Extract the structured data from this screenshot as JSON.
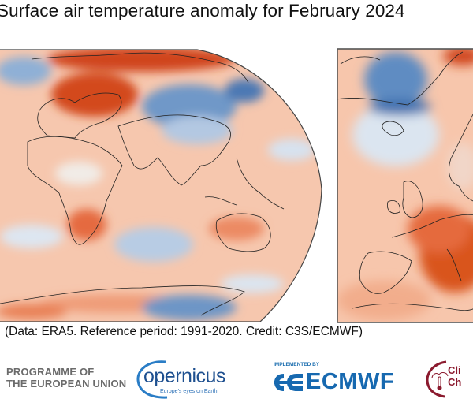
{
  "title": "Surface air temperature anomaly for February 2024",
  "credit": "(Data: ERA5.  Reference period: 1991-2020.  Credit: C3S/ECMWF)",
  "maps": {
    "world": {
      "region": "global",
      "colormap": "blue-white-red anomaly"
    },
    "europe": {
      "region": "europe",
      "colormap": "blue-white-red anomaly"
    }
  },
  "colors": {
    "warm_strong": "#c0300b",
    "warm": "#e8714a",
    "warm_light": "#f7c3a8",
    "neutral": "#f7f2ee",
    "cool_light": "#cddcee",
    "cool": "#6f98c8",
    "cool_strong": "#2c5a9c",
    "coast": "#222222"
  },
  "logos": {
    "eu_programme": {
      "line1": "PROGRAMME OF",
      "line2": "THE EUROPEAN UNION"
    },
    "copernicus": {
      "word": "opernicus",
      "tagline": "Europe's eyes on Earth"
    },
    "ecmwf": {
      "implemented_by": "IMPLEMENTED BY",
      "word": "ECMWF"
    },
    "c3s": {
      "text": "Cli\nCh"
    }
  }
}
